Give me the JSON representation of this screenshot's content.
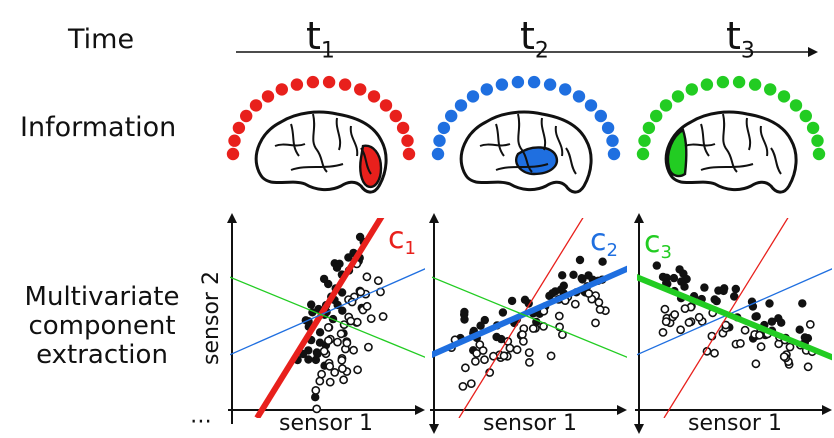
{
  "row_labels": {
    "time": "Time",
    "information": "Information",
    "extraction_line1": "Multivariate",
    "extraction_line2": "component",
    "extraction_line3": "extraction"
  },
  "timepoints": [
    {
      "base": "t",
      "sub": "1"
    },
    {
      "base": "t",
      "sub": "2"
    },
    {
      "base": "t",
      "sub": "3"
    }
  ],
  "components": [
    {
      "base": "c",
      "sub": "1",
      "color": "#e8201c"
    },
    {
      "base": "c",
      "sub": "2",
      "color": "#1f6fe0"
    },
    {
      "base": "c",
      "sub": "3",
      "color": "#22cc22"
    }
  ],
  "axes": {
    "x_label": "sensor 1",
    "y_label": "sensor 2",
    "ellipsis": "⋯"
  },
  "colors": {
    "red": "#e8201c",
    "blue": "#1f6fe0",
    "green": "#22cc22",
    "outline": "#111111"
  }
}
